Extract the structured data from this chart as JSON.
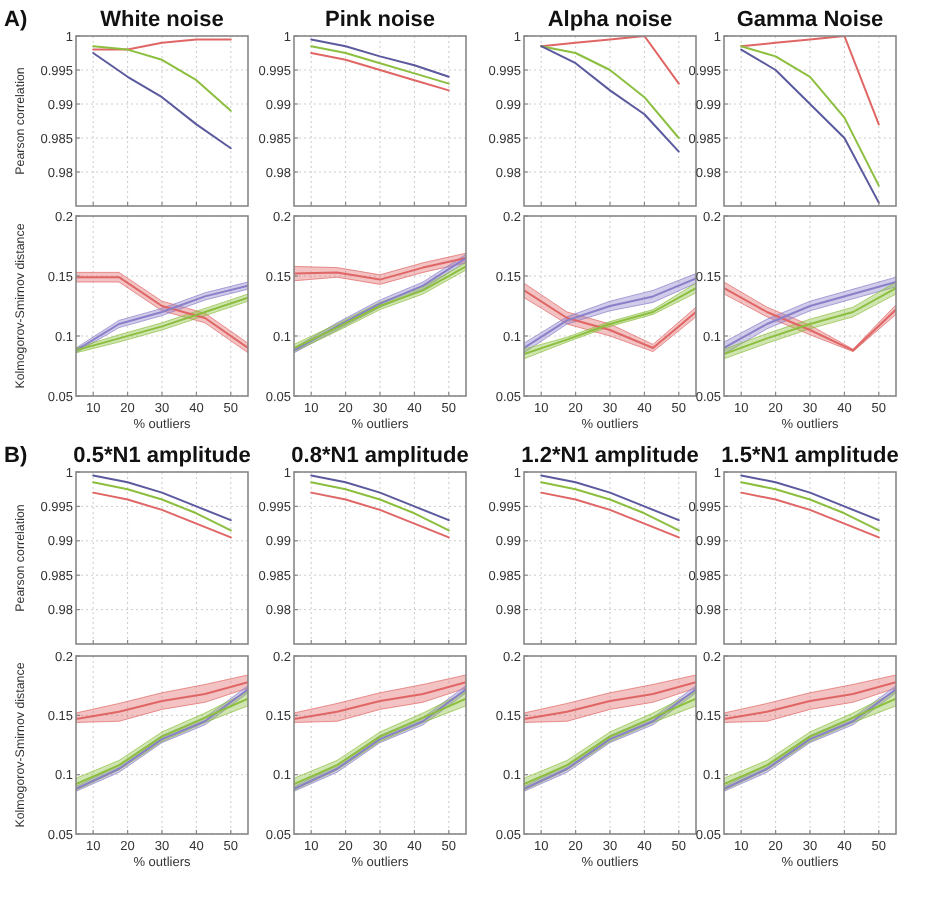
{
  "chart_data": [
    {
      "type": "line",
      "title": "White noise",
      "annotations": [
        "A)"
      ],
      "ylabel": "Pearson correlation",
      "x": [
        10,
        20,
        30,
        40,
        50
      ],
      "xlim": [
        5,
        55
      ],
      "xticks": [
        10,
        20,
        30,
        40,
        50
      ],
      "ylim": [
        0.975,
        1
      ],
      "yticks": [
        0.98,
        0.985,
        0.99,
        0.995,
        1
      ],
      "grid": true,
      "tick_labels": "y",
      "series": [
        {
          "color": "#e06666",
          "values": [
            0.998,
            0.998,
            0.999,
            0.9995,
            0.9995
          ]
        },
        {
          "color": "#8cbf3f",
          "values": [
            0.9985,
            0.998,
            0.9965,
            0.9935,
            0.989
          ]
        },
        {
          "color": "#5b5a9e",
          "values": [
            0.9975,
            0.994,
            0.991,
            0.987,
            0.9835
          ]
        }
      ]
    },
    {
      "type": "line",
      "title": "Pink noise",
      "x": [
        10,
        20,
        30,
        40,
        50
      ],
      "xlim": [
        5,
        55
      ],
      "xticks": [
        10,
        20,
        30,
        40,
        50
      ],
      "ylim": [
        0.975,
        1
      ],
      "yticks": [
        0.98,
        0.985,
        0.99,
        0.995,
        1
      ],
      "grid": true,
      "tick_labels": "y",
      "series": [
        {
          "color": "#e06666",
          "values": [
            0.9975,
            0.9965,
            0.995,
            0.9935,
            0.992
          ]
        },
        {
          "color": "#8cbf3f",
          "values": [
            0.9985,
            0.9975,
            0.996,
            0.9945,
            0.993
          ]
        },
        {
          "color": "#5b5a9e",
          "values": [
            0.9995,
            0.9985,
            0.997,
            0.9957,
            0.994
          ]
        }
      ]
    },
    {
      "type": "line",
      "title": "Alpha noise",
      "x": [
        10,
        20,
        30,
        40,
        50
      ],
      "xlim": [
        5,
        55
      ],
      "xticks": [
        10,
        20,
        30,
        40,
        50
      ],
      "ylim": [
        0.975,
        1
      ],
      "yticks": [
        0.98,
        0.985,
        0.99,
        0.995,
        1
      ],
      "grid": true,
      "tick_labels": "y",
      "series": [
        {
          "color": "#e06666",
          "values": [
            0.9985,
            0.999,
            0.9995,
            1,
            0.993
          ]
        },
        {
          "color": "#8cbf3f",
          "values": [
            0.9985,
            0.9975,
            0.995,
            0.991,
            0.985
          ]
        },
        {
          "color": "#5b5a9e",
          "values": [
            0.9985,
            0.996,
            0.992,
            0.9885,
            0.983
          ]
        }
      ]
    },
    {
      "type": "line",
      "title": "Gamma Noise",
      "x": [
        10,
        20,
        30,
        40,
        50
      ],
      "xlim": [
        5,
        55
      ],
      "xticks": [
        10,
        20,
        30,
        40,
        50
      ],
      "ylim": [
        0.975,
        1
      ],
      "yticks": [
        0.98,
        0.985,
        0.99,
        0.995,
        1
      ],
      "grid": true,
      "tick_labels": "y",
      "series": [
        {
          "color": "#e06666",
          "values": [
            0.9985,
            0.999,
            0.9995,
            1,
            0.987
          ]
        },
        {
          "color": "#8cbf3f",
          "values": [
            0.9985,
            0.997,
            0.994,
            0.988,
            0.978
          ]
        },
        {
          "color": "#5b5a9e",
          "values": [
            0.998,
            0.995,
            0.99,
            0.985,
            0.9755
          ]
        }
      ]
    },
    {
      "type": "line",
      "ylabel": "Kolmogorov-Smirnov distance",
      "xlabel": "% outliers",
      "x": [
        5,
        17.5,
        30,
        42.5,
        55
      ],
      "xlim": [
        5,
        55
      ],
      "xticks": [
        10,
        20,
        30,
        40,
        50
      ],
      "ylim": [
        0.05,
        0.2
      ],
      "yticks": [
        0.05,
        0.1,
        0.15,
        0.2
      ],
      "grid": true,
      "series": [
        {
          "color": "#e06666",
          "values": [
            0.149,
            0.149,
            0.125,
            0.115,
            0.09
          ],
          "lower": [
            0.145,
            0.145,
            0.121,
            0.111,
            0.086
          ],
          "upper": [
            0.153,
            0.153,
            0.129,
            0.119,
            0.094
          ]
        },
        {
          "color": "#8a7fc9",
          "values": [
            0.088,
            0.11,
            0.12,
            0.133,
            0.142
          ],
          "lower": [
            0.086,
            0.107,
            0.117,
            0.13,
            0.139
          ],
          "upper": [
            0.09,
            0.113,
            0.123,
            0.136,
            0.145
          ]
        },
        {
          "color": "#8cbf3f",
          "values": [
            0.088,
            0.098,
            0.108,
            0.12,
            0.132
          ],
          "lower": [
            0.086,
            0.095,
            0.105,
            0.117,
            0.129
          ],
          "upper": [
            0.09,
            0.101,
            0.111,
            0.123,
            0.135
          ]
        }
      ]
    },
    {
      "type": "line",
      "xlabel": "% outliers",
      "x": [
        5,
        17.5,
        30,
        42.5,
        55
      ],
      "xlim": [
        5,
        55
      ],
      "xticks": [
        10,
        20,
        30,
        40,
        50
      ],
      "ylim": [
        0.05,
        0.2
      ],
      "yticks": [
        0.05,
        0.1,
        0.15,
        0.2
      ],
      "grid": true,
      "series": [
        {
          "color": "#e06666",
          "values": [
            0.152,
            0.153,
            0.147,
            0.157,
            0.165
          ],
          "lower": [
            0.146,
            0.149,
            0.143,
            0.153,
            0.161
          ],
          "upper": [
            0.158,
            0.157,
            0.151,
            0.161,
            0.169
          ]
        },
        {
          "color": "#8a7fc9",
          "values": [
            0.088,
            0.108,
            0.127,
            0.142,
            0.165
          ],
          "lower": [
            0.086,
            0.105,
            0.124,
            0.139,
            0.162
          ],
          "upper": [
            0.09,
            0.111,
            0.13,
            0.145,
            0.168
          ]
        },
        {
          "color": "#8cbf3f",
          "values": [
            0.09,
            0.107,
            0.125,
            0.138,
            0.158
          ],
          "lower": [
            0.087,
            0.104,
            0.122,
            0.135,
            0.155
          ],
          "upper": [
            0.093,
            0.11,
            0.128,
            0.141,
            0.161
          ]
        }
      ]
    },
    {
      "type": "line",
      "xlabel": "% outliers",
      "x": [
        5,
        17.5,
        30,
        42.5,
        55
      ],
      "xlim": [
        5,
        55
      ],
      "xticks": [
        10,
        20,
        30,
        40,
        50
      ],
      "ylim": [
        0.05,
        0.2
      ],
      "yticks": [
        0.05,
        0.1,
        0.15,
        0.2
      ],
      "grid": true,
      "series": [
        {
          "color": "#e06666",
          "values": [
            0.138,
            0.115,
            0.105,
            0.09,
            0.12
          ],
          "lower": [
            0.132,
            0.11,
            0.1,
            0.087,
            0.116
          ],
          "upper": [
            0.144,
            0.12,
            0.11,
            0.093,
            0.124
          ]
        },
        {
          "color": "#8a7fc9",
          "values": [
            0.09,
            0.113,
            0.125,
            0.133,
            0.148
          ],
          "lower": [
            0.086,
            0.11,
            0.121,
            0.128,
            0.144
          ],
          "upper": [
            0.094,
            0.116,
            0.129,
            0.138,
            0.152
          ]
        },
        {
          "color": "#8cbf3f",
          "values": [
            0.085,
            0.097,
            0.11,
            0.12,
            0.14
          ],
          "lower": [
            0.081,
            0.095,
            0.108,
            0.118,
            0.136
          ],
          "upper": [
            0.089,
            0.099,
            0.112,
            0.122,
            0.144
          ]
        }
      ]
    },
    {
      "type": "line",
      "xlabel": "% outliers",
      "x": [
        5,
        17.5,
        30,
        42.5,
        55
      ],
      "xlim": [
        5,
        55
      ],
      "xticks": [
        10,
        20,
        30,
        40,
        50
      ],
      "ylim": [
        0.05,
        0.2
      ],
      "yticks": [
        0.05,
        0.1,
        0.15,
        0.2
      ],
      "grid": true,
      "series": [
        {
          "color": "#e06666",
          "values": [
            0.14,
            0.12,
            0.105,
            0.088,
            0.122
          ],
          "lower": [
            0.135,
            0.116,
            0.101,
            0.087,
            0.118
          ],
          "upper": [
            0.145,
            0.124,
            0.109,
            0.089,
            0.126
          ]
        },
        {
          "color": "#8a7fc9",
          "values": [
            0.09,
            0.11,
            0.125,
            0.135,
            0.145
          ],
          "lower": [
            0.085,
            0.106,
            0.121,
            0.131,
            0.141
          ],
          "upper": [
            0.095,
            0.114,
            0.129,
            0.139,
            0.149
          ]
        },
        {
          "color": "#8cbf3f",
          "values": [
            0.085,
            0.098,
            0.11,
            0.12,
            0.14
          ],
          "lower": [
            0.081,
            0.094,
            0.106,
            0.116,
            0.135
          ],
          "upper": [
            0.089,
            0.102,
            0.114,
            0.124,
            0.145
          ]
        }
      ]
    },
    {
      "type": "line",
      "title": "0.5*N1 amplitude",
      "annotations": [
        "B)"
      ],
      "ylabel": "Pearson correlation",
      "x": [
        10,
        20,
        30,
        40,
        50
      ],
      "xlim": [
        5,
        55
      ],
      "xticks": [
        10,
        20,
        30,
        40,
        50
      ],
      "ylim": [
        0.975,
        1
      ],
      "yticks": [
        0.98,
        0.985,
        0.99,
        0.995,
        1
      ],
      "grid": true,
      "tick_labels": "y",
      "series": [
        {
          "color": "#e06666",
          "values": [
            0.997,
            0.996,
            0.9945,
            0.9925,
            0.9905
          ]
        },
        {
          "color": "#8cbf3f",
          "values": [
            0.9985,
            0.9975,
            0.996,
            0.994,
            0.9915
          ]
        },
        {
          "color": "#5b5a9e",
          "values": [
            0.9995,
            0.9985,
            0.997,
            0.995,
            0.993
          ]
        }
      ]
    },
    {
      "type": "line",
      "title": "0.8*N1 amplitude",
      "x": [
        10,
        20,
        30,
        40,
        50
      ],
      "xlim": [
        5,
        55
      ],
      "xticks": [
        10,
        20,
        30,
        40,
        50
      ],
      "ylim": [
        0.975,
        1
      ],
      "yticks": [
        0.98,
        0.985,
        0.99,
        0.995,
        1
      ],
      "grid": true,
      "tick_labels": "y",
      "series": [
        {
          "color": "#e06666",
          "values": [
            0.997,
            0.996,
            0.9945,
            0.9925,
            0.9905
          ]
        },
        {
          "color": "#8cbf3f",
          "values": [
            0.9985,
            0.9975,
            0.996,
            0.994,
            0.9915
          ]
        },
        {
          "color": "#5b5a9e",
          "values": [
            0.9995,
            0.9985,
            0.997,
            0.995,
            0.993
          ]
        }
      ]
    },
    {
      "type": "line",
      "title": "1.2*N1 amplitude",
      "x": [
        10,
        20,
        30,
        40,
        50
      ],
      "xlim": [
        5,
        55
      ],
      "xticks": [
        10,
        20,
        30,
        40,
        50
      ],
      "ylim": [
        0.975,
        1
      ],
      "yticks": [
        0.98,
        0.985,
        0.99,
        0.995,
        1
      ],
      "grid": true,
      "tick_labels": "y",
      "series": [
        {
          "color": "#e06666",
          "values": [
            0.997,
            0.996,
            0.9945,
            0.9925,
            0.9905
          ]
        },
        {
          "color": "#8cbf3f",
          "values": [
            0.9985,
            0.9975,
            0.996,
            0.994,
            0.9915
          ]
        },
        {
          "color": "#5b5a9e",
          "values": [
            0.9995,
            0.9985,
            0.997,
            0.995,
            0.993
          ]
        }
      ]
    },
    {
      "type": "line",
      "title": "1.5*N1 amplitude",
      "x": [
        10,
        20,
        30,
        40,
        50
      ],
      "xlim": [
        5,
        55
      ],
      "xticks": [
        10,
        20,
        30,
        40,
        50
      ],
      "ylim": [
        0.975,
        1
      ],
      "yticks": [
        0.98,
        0.985,
        0.99,
        0.995,
        1
      ],
      "grid": true,
      "tick_labels": "y",
      "series": [
        {
          "color": "#e06666",
          "values": [
            0.997,
            0.996,
            0.9945,
            0.9925,
            0.9905
          ]
        },
        {
          "color": "#8cbf3f",
          "values": [
            0.9985,
            0.9975,
            0.996,
            0.994,
            0.9915
          ]
        },
        {
          "color": "#5b5a9e",
          "values": [
            0.9995,
            0.9985,
            0.997,
            0.995,
            0.993
          ]
        }
      ]
    },
    {
      "type": "line",
      "ylabel": "Kolmogorov-Smirnov distance",
      "xlabel": "% outliers",
      "x": [
        5,
        17.5,
        30,
        42.5,
        55
      ],
      "xlim": [
        5,
        55
      ],
      "xticks": [
        10,
        20,
        30,
        40,
        50
      ],
      "ylim": [
        0.05,
        0.2
      ],
      "yticks": [
        0.05,
        0.1,
        0.15,
        0.2
      ],
      "grid": true,
      "series": [
        {
          "color": "#e06666",
          "values": [
            0.147,
            0.153,
            0.162,
            0.168,
            0.178
          ],
          "lower": [
            0.144,
            0.145,
            0.155,
            0.161,
            0.173
          ],
          "upper": [
            0.152,
            0.16,
            0.169,
            0.176,
            0.184
          ]
        },
        {
          "color": "#8a7fc9",
          "values": [
            0.088,
            0.105,
            0.13,
            0.145,
            0.172
          ],
          "lower": [
            0.086,
            0.102,
            0.127,
            0.142,
            0.169
          ],
          "upper": [
            0.09,
            0.108,
            0.133,
            0.148,
            0.175
          ]
        },
        {
          "color": "#8cbf3f",
          "values": [
            0.092,
            0.108,
            0.132,
            0.148,
            0.164
          ],
          "lower": [
            0.087,
            0.104,
            0.128,
            0.144,
            0.158
          ],
          "upper": [
            0.097,
            0.112,
            0.136,
            0.152,
            0.17
          ]
        }
      ]
    },
    {
      "type": "line",
      "xlabel": "% outliers",
      "x": [
        5,
        17.5,
        30,
        42.5,
        55
      ],
      "xlim": [
        5,
        55
      ],
      "xticks": [
        10,
        20,
        30,
        40,
        50
      ],
      "ylim": [
        0.05,
        0.2
      ],
      "yticks": [
        0.05,
        0.1,
        0.15,
        0.2
      ],
      "grid": true,
      "series": [
        {
          "color": "#e06666",
          "values": [
            0.147,
            0.153,
            0.162,
            0.168,
            0.178
          ],
          "lower": [
            0.144,
            0.145,
            0.155,
            0.161,
            0.173
          ],
          "upper": [
            0.152,
            0.16,
            0.169,
            0.176,
            0.184
          ]
        },
        {
          "color": "#8a7fc9",
          "values": [
            0.088,
            0.105,
            0.13,
            0.145,
            0.172
          ],
          "lower": [
            0.086,
            0.102,
            0.127,
            0.142,
            0.169
          ],
          "upper": [
            0.09,
            0.108,
            0.133,
            0.148,
            0.175
          ]
        },
        {
          "color": "#8cbf3f",
          "values": [
            0.092,
            0.108,
            0.132,
            0.148,
            0.164
          ],
          "lower": [
            0.087,
            0.104,
            0.128,
            0.144,
            0.158
          ],
          "upper": [
            0.097,
            0.112,
            0.136,
            0.152,
            0.17
          ]
        }
      ]
    },
    {
      "type": "line",
      "xlabel": "% outliers",
      "x": [
        5,
        17.5,
        30,
        42.5,
        55
      ],
      "xlim": [
        5,
        55
      ],
      "xticks": [
        10,
        20,
        30,
        40,
        50
      ],
      "ylim": [
        0.05,
        0.2
      ],
      "yticks": [
        0.05,
        0.1,
        0.15,
        0.2
      ],
      "grid": true,
      "series": [
        {
          "color": "#e06666",
          "values": [
            0.147,
            0.153,
            0.162,
            0.168,
            0.178
          ],
          "lower": [
            0.144,
            0.145,
            0.155,
            0.161,
            0.173
          ],
          "upper": [
            0.152,
            0.16,
            0.169,
            0.176,
            0.184
          ]
        },
        {
          "color": "#8a7fc9",
          "values": [
            0.088,
            0.105,
            0.13,
            0.145,
            0.172
          ],
          "lower": [
            0.086,
            0.102,
            0.127,
            0.142,
            0.169
          ],
          "upper": [
            0.09,
            0.108,
            0.133,
            0.148,
            0.175
          ]
        },
        {
          "color": "#8cbf3f",
          "values": [
            0.092,
            0.108,
            0.132,
            0.148,
            0.164
          ],
          "lower": [
            0.087,
            0.104,
            0.128,
            0.144,
            0.158
          ],
          "upper": [
            0.097,
            0.112,
            0.136,
            0.152,
            0.17
          ]
        }
      ]
    },
    {
      "type": "line",
      "xlabel": "% outliers",
      "x": [
        5,
        17.5,
        30,
        42.5,
        55
      ],
      "xlim": [
        5,
        55
      ],
      "xticks": [
        10,
        20,
        30,
        40,
        50
      ],
      "ylim": [
        0.05,
        0.2
      ],
      "yticks": [
        0.05,
        0.1,
        0.15,
        0.2
      ],
      "grid": true,
      "series": [
        {
          "color": "#e06666",
          "values": [
            0.147,
            0.153,
            0.162,
            0.168,
            0.178
          ],
          "lower": [
            0.144,
            0.145,
            0.155,
            0.161,
            0.173
          ],
          "upper": [
            0.152,
            0.16,
            0.169,
            0.176,
            0.184
          ]
        },
        {
          "color": "#8a7fc9",
          "values": [
            0.088,
            0.105,
            0.13,
            0.145,
            0.172
          ],
          "lower": [
            0.086,
            0.102,
            0.127,
            0.142,
            0.169
          ],
          "upper": [
            0.09,
            0.108,
            0.133,
            0.148,
            0.175
          ]
        },
        {
          "color": "#8cbf3f",
          "values": [
            0.092,
            0.108,
            0.132,
            0.148,
            0.164
          ],
          "lower": [
            0.087,
            0.104,
            0.128,
            0.144,
            0.158
          ],
          "upper": [
            0.097,
            0.112,
            0.136,
            0.152,
            0.17
          ]
        }
      ]
    }
  ]
}
